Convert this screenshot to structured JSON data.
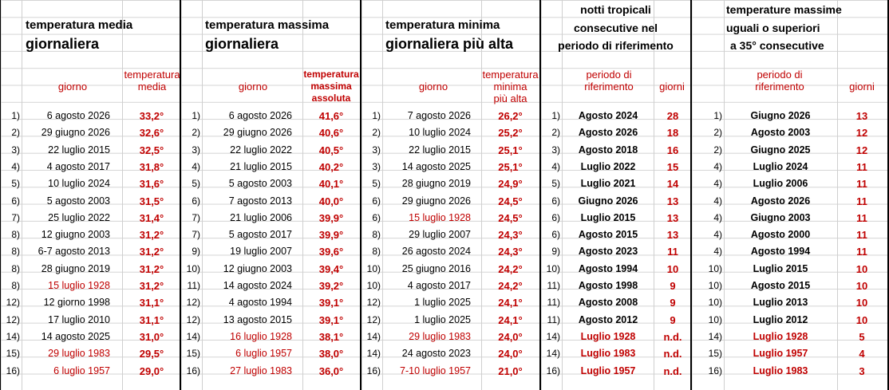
{
  "panels": [
    {
      "title1": "temperatura media",
      "title2": "giornaliera",
      "col_day": "giorno",
      "col_val_lines": [
        "temperatura",
        "media"
      ],
      "rows": [
        {
          "rank": "1)",
          "day": "6 agosto 2026",
          "val": "33,2°",
          "red": false
        },
        {
          "rank": "2)",
          "day": "29 giugno 2026",
          "val": "32,6°",
          "red": false
        },
        {
          "rank": "3)",
          "day": "22 luglio 2015",
          "val": "32,5°",
          "red": false
        },
        {
          "rank": "4)",
          "day": "4 agosto 2017",
          "val": "31,8°",
          "red": false
        },
        {
          "rank": "5)",
          "day": "10 luglio 2024",
          "val": "31,6°",
          "red": false
        },
        {
          "rank": "6)",
          "day": "5 agosto 2003",
          "val": "31,5°",
          "red": false
        },
        {
          "rank": "7)",
          "day": "25 luglio 2022",
          "val": "31,4°",
          "red": false
        },
        {
          "rank": "8)",
          "day": "12 giugno 2003",
          "val": "31,2°",
          "red": false
        },
        {
          "rank": "8)",
          "day": "6-7 agosto 2013",
          "val": "31,2°",
          "red": false
        },
        {
          "rank": "8)",
          "day": "28 giugno 2019",
          "val": "31,2°",
          "red": false
        },
        {
          "rank": "8)",
          "day": "15 luglio 1928",
          "val": "31,2°",
          "red": true
        },
        {
          "rank": "12)",
          "day": "12 giorno 1998",
          "val": "31,1°",
          "red": false
        },
        {
          "rank": "12)",
          "day": "17 luglio 2010",
          "val": "31,1°",
          "red": false
        },
        {
          "rank": "14)",
          "day": "14 agosto 2025",
          "val": "31,0°",
          "red": false
        },
        {
          "rank": "15)",
          "day": "29 luglio 1983",
          "val": "29,5°",
          "red": true
        },
        {
          "rank": "16)",
          "day": "6 luglio 1957",
          "val": "29,0°",
          "red": true
        }
      ]
    },
    {
      "title1": "temperatura massima",
      "title2": "giornaliera",
      "col_day": "giorno",
      "col_val_lines": [
        "temperatura",
        "massima",
        "assoluta"
      ],
      "rows": [
        {
          "rank": "1)",
          "day": "6 agosto 2026",
          "val": "41,6°",
          "red": false
        },
        {
          "rank": "2)",
          "day": "29 giugno 2026",
          "val": "40,6°",
          "red": false
        },
        {
          "rank": "3)",
          "day": "22 luglio 2022",
          "val": "40,5°",
          "red": false
        },
        {
          "rank": "4)",
          "day": "21 luglio 2015",
          "val": "40,2°",
          "red": false
        },
        {
          "rank": "5)",
          "day": "5 agosto 2003",
          "val": "40,1°",
          "red": false
        },
        {
          "rank": "6)",
          "day": "7 agosto 2013",
          "val": "40,0°",
          "red": false
        },
        {
          "rank": "7)",
          "day": "21 luglio 2006",
          "val": "39,9°",
          "red": false
        },
        {
          "rank": "7)",
          "day": "5 agosto 2017",
          "val": "39,9°",
          "red": false
        },
        {
          "rank": "9)",
          "day": "19 luglio 2007",
          "val": "39,6°",
          "red": false
        },
        {
          "rank": "10)",
          "day": "12 giugno 2003",
          "val": "39,4°",
          "red": false
        },
        {
          "rank": "11)",
          "day": "14 agosto 2024",
          "val": "39,2°",
          "red": false
        },
        {
          "rank": "12)",
          "day": "4 agosto 1994",
          "val": "39,1°",
          "red": false
        },
        {
          "rank": "12)",
          "day": "13 agosto 2015",
          "val": "39,1°",
          "red": false
        },
        {
          "rank": "14)",
          "day": "16 luglio 1928",
          "val": "38,1°",
          "red": true
        },
        {
          "rank": "15)",
          "day": "6 luglio 1957",
          "val": "38,0°",
          "red": true
        },
        {
          "rank": "16)",
          "day": "27 luglio 1983",
          "val": "36,0°",
          "red": true
        }
      ]
    },
    {
      "title1": "temperatura minima",
      "title2": "giornaliera più alta",
      "col_day": "giorno",
      "col_val_lines": [
        "temperatura",
        "minima",
        "più alta"
      ],
      "rows": [
        {
          "rank": "1)",
          "day": "7 agosto 2026",
          "val": "26,2°",
          "red": false
        },
        {
          "rank": "2)",
          "day": "10 luglio 2024",
          "val": "25,2°",
          "red": false
        },
        {
          "rank": "3)",
          "day": "22 luglio 2015",
          "val": "25,1°",
          "red": false
        },
        {
          "rank": "3)",
          "day": "14 agosto 2025",
          "val": "25,1°",
          "red": false
        },
        {
          "rank": "5)",
          "day": "28 giugno 2019",
          "val": "24,9°",
          "red": false
        },
        {
          "rank": "6)",
          "day": "29 giugno 2026",
          "val": "24,5°",
          "red": false
        },
        {
          "rank": "6)",
          "day": "15 luglio 1928",
          "val": "24,5°",
          "red": true
        },
        {
          "rank": "8)",
          "day": "29 luglio 2007",
          "val": "24,3°",
          "red": false
        },
        {
          "rank": "8)",
          "day": "26 agosto 2024",
          "val": "24,3°",
          "red": false
        },
        {
          "rank": "10)",
          "day": "25 giugno 2016",
          "val": "24,2°",
          "red": false
        },
        {
          "rank": "10)",
          "day": "4 agosto 2017",
          "val": "24,2°",
          "red": false
        },
        {
          "rank": "12)",
          "day": "1 luglio 2025",
          "val": "24,1°",
          "red": false
        },
        {
          "rank": "12)",
          "day": "1 luglio 2025",
          "val": "24,1°",
          "red": false
        },
        {
          "rank": "14)",
          "day": "29 luglio 1983",
          "val": "24,0°",
          "red": true
        },
        {
          "rank": "14)",
          "day": "24 agosto 2023",
          "val": "24,0°",
          "red": false
        },
        {
          "rank": "16)",
          "day": "7-10 luglio 1957",
          "val": "21,0°",
          "red": true
        }
      ]
    },
    {
      "title_lines": [
        "notti tropicali",
        "consecutive nel",
        "periodo di riferimento"
      ],
      "col_day_lines": [
        "periodo di",
        "riferimento"
      ],
      "col_val": "giorni",
      "rows": [
        {
          "rank": "1)",
          "day": "Agosto 2024",
          "val": "28",
          "red": false
        },
        {
          "rank": "2)",
          "day": "Agosto 2026",
          "val": "18",
          "red": false
        },
        {
          "rank": "3)",
          "day": "Agosto 2018",
          "val": "16",
          "red": false
        },
        {
          "rank": "4)",
          "day": "Luglio 2022",
          "val": "15",
          "red": false
        },
        {
          "rank": "5)",
          "day": "Luglio 2021",
          "val": "14",
          "red": false
        },
        {
          "rank": "6)",
          "day": "Giugno 2026",
          "val": "13",
          "red": false
        },
        {
          "rank": "6)",
          "day": "Luglio 2015",
          "val": "13",
          "red": false
        },
        {
          "rank": "6)",
          "day": "Agosto 2015",
          "val": "13",
          "red": false
        },
        {
          "rank": "9)",
          "day": "Agosto 2023",
          "val": "11",
          "red": false
        },
        {
          "rank": "10)",
          "day": "Agosto 1994",
          "val": "10",
          "red": false
        },
        {
          "rank": "11)",
          "day": "Agosto 1998",
          "val": "9",
          "red": false
        },
        {
          "rank": "11)",
          "day": "Agosto 2008",
          "val": "9",
          "red": false
        },
        {
          "rank": "11)",
          "day": "Agosto 2012",
          "val": "9",
          "red": false
        },
        {
          "rank": "14)",
          "day": "Luglio 1928",
          "val": "n.d.",
          "red": true
        },
        {
          "rank": "14)",
          "day": "Luglio 1983",
          "val": "n.d.",
          "red": true
        },
        {
          "rank": "16)",
          "day": "Luglio 1957",
          "val": "n.d.",
          "red": true
        }
      ]
    },
    {
      "title_lines": [
        "temperature massime",
        "uguali o superiori",
        "a 35° consecutive"
      ],
      "col_day_lines": [
        "periodo di",
        "riferimento"
      ],
      "col_val": "giorni",
      "rows": [
        {
          "rank": "1)",
          "day": "Giugno 2026",
          "val": "13",
          "red": false
        },
        {
          "rank": "2)",
          "day": "Agosto 2003",
          "val": "12",
          "red": false
        },
        {
          "rank": "2)",
          "day": "Giugno 2025",
          "val": "12",
          "red": false
        },
        {
          "rank": "4)",
          "day": "Luglio 2024",
          "val": "11",
          "red": false
        },
        {
          "rank": "4)",
          "day": "Luglio 2006",
          "val": "11",
          "red": false
        },
        {
          "rank": "4)",
          "day": "Agosto 2026",
          "val": "11",
          "red": false
        },
        {
          "rank": "4)",
          "day": "Giugno 2003",
          "val": "11",
          "red": false
        },
        {
          "rank": "4)",
          "day": "Agosto 2000",
          "val": "11",
          "red": false
        },
        {
          "rank": "4)",
          "day": "Agosto 1994",
          "val": "11",
          "red": false
        },
        {
          "rank": "10)",
          "day": "Luglio 2015",
          "val": "10",
          "red": false
        },
        {
          "rank": "10)",
          "day": "Agosto 2015",
          "val": "10",
          "red": false
        },
        {
          "rank": "10)",
          "day": "Luglio 2013",
          "val": "10",
          "red": false
        },
        {
          "rank": "10)",
          "day": "Luglio 2012",
          "val": "10",
          "red": false
        },
        {
          "rank": "14)",
          "day": "Luglio 1928",
          "val": "5",
          "red": true
        },
        {
          "rank": "15)",
          "day": "Luglio 1957",
          "val": "4",
          "red": true
        },
        {
          "rank": "16)",
          "day": "Luglio 1983",
          "val": "3",
          "red": true
        }
      ]
    }
  ]
}
